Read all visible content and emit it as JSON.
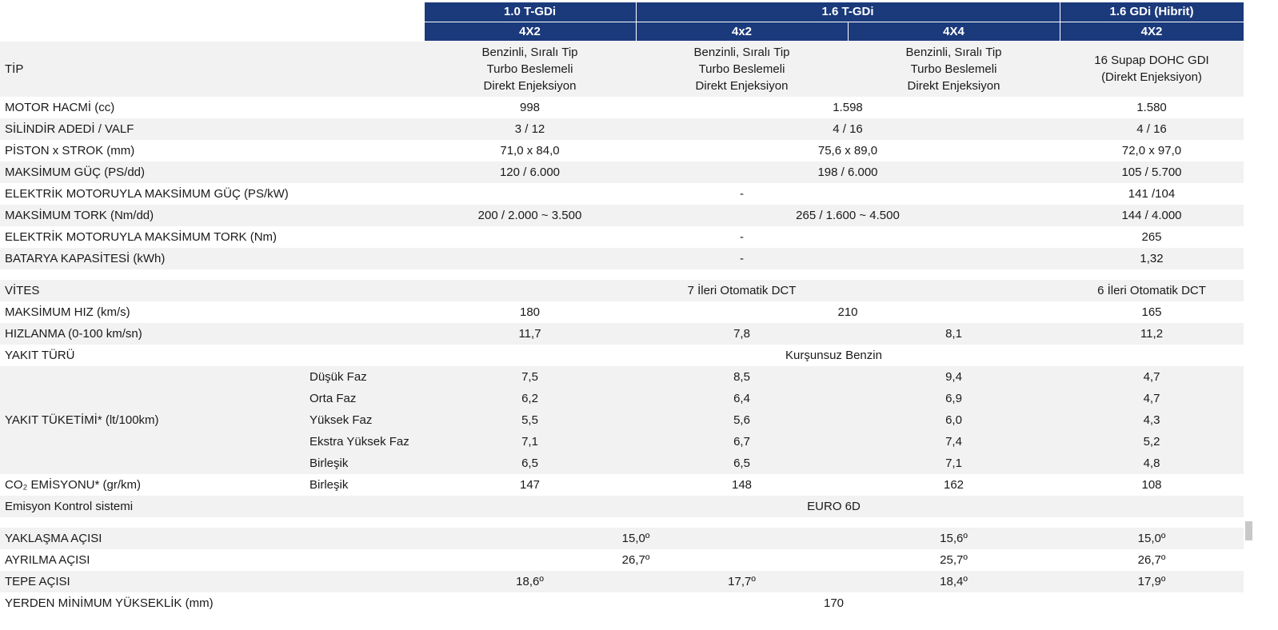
{
  "header": {
    "engines": [
      "1.0 T-GDi",
      "1.6 T-GDi",
      "1.6 GDi (Hibrit)"
    ],
    "drives": [
      "4X2",
      "4x2",
      "4X4",
      "4X2"
    ]
  },
  "engine_rows": [
    {
      "label": "TİP",
      "values": [
        "Benzinli, Sıralı Tip\nTurbo Beslemeli\nDirekt Enjeksiyon",
        "Benzinli, Sıralı Tip\nTurbo Beslemeli\nDirekt Enjeksiyon",
        "Benzinli, Sıralı Tip\nTurbo Beslemeli\nDirekt Enjeksiyon",
        "16 Supap DOHC GDI\n(Direkt Enjeksiyon)"
      ]
    },
    {
      "label": "MOTOR HACMİ (cc)",
      "values": [
        "998",
        "1.598",
        "1.580"
      ]
    },
    {
      "label": "SİLİNDİR ADEDİ / VALF",
      "values": [
        "3 / 12",
        "4 / 16",
        "4 / 16"
      ]
    },
    {
      "label": "PİSTON x STROK (mm)",
      "values": [
        "71,0 x 84,0",
        "75,6 x 89,0",
        "72,0 x 97,0"
      ]
    },
    {
      "label": "MAKSİMUM GÜÇ (PS/dd)",
      "values": [
        "120 / 6.000",
        "198 / 6.000",
        "105 / 5.700"
      ]
    },
    {
      "label": "ELEKTRİK MOTORUYLA MAKSİMUM GÜÇ (PS/kW)",
      "values": [
        "-",
        "141 /104"
      ]
    },
    {
      "label": "MAKSİMUM TORK (Nm/dd)",
      "values": [
        "200 / 2.000 ~ 3.500",
        "265 / 1.600 ~ 4.500",
        "144 / 4.000"
      ]
    },
    {
      "label": "ELEKTRİK MOTORUYLA MAKSİMUM TORK (Nm)",
      "values": [
        "-",
        "265"
      ]
    },
    {
      "label": "BATARYA KAPASİTESİ (kWh)",
      "values": [
        "-",
        "1,32"
      ]
    },
    {
      "label": "VİTES",
      "values": [
        "7 İleri Otomatik DCT",
        "6 İleri Otomatik DCT"
      ]
    },
    {
      "label": "MAKSİMUM HIZ (km/s)",
      "values": [
        "180",
        "210",
        "165"
      ]
    },
    {
      "label": "HIZLANMA (0-100 km/sn)",
      "values": [
        "11,7",
        "7,8",
        "8,1",
        "11,2"
      ]
    },
    {
      "label": "YAKIT TÜRÜ",
      "values": [
        "Kurşunsuz Benzin"
      ]
    }
  ],
  "fuel_consumption": {
    "label": "YAKIT TÜKETİMİ* (lt/100km)",
    "phases": [
      {
        "name": "Düşük Faz",
        "values": [
          "7,5",
          "8,5",
          "9,4",
          "4,7"
        ]
      },
      {
        "name": "Orta Faz",
        "values": [
          "6,2",
          "6,4",
          "6,9",
          "4,7"
        ]
      },
      {
        "name": "Yüksek Faz",
        "values": [
          "5,5",
          "5,6",
          "6,0",
          "4,3"
        ]
      },
      {
        "name": "Ekstra Yüksek Faz",
        "values": [
          "7,1",
          "6,7",
          "7,4",
          "5,2"
        ]
      },
      {
        "name": "Birleşik",
        "values": [
          "6,5",
          "6,5",
          "7,1",
          "4,8"
        ]
      }
    ]
  },
  "co2_emission": {
    "label": "CO₂ EMİSYONU* (gr/km)",
    "phase": "Birleşik",
    "values": [
      "147",
      "148",
      "162",
      "108"
    ]
  },
  "body_rows": [
    {
      "label": "Emisyon Kontrol sistemi",
      "values": [
        "EURO 6D"
      ]
    },
    {
      "label": "YAKLAŞMA AÇISI",
      "values": [
        "15,0º",
        "15,6º",
        "15,0º"
      ]
    },
    {
      "label": "AYRILMA AÇISI",
      "values": [
        "26,7º",
        "25,7º",
        "26,7º"
      ]
    },
    {
      "label": "TEPE AÇISI",
      "values": [
        "18,6º",
        "17,7º",
        "18,4º",
        "17,9º"
      ]
    },
    {
      "label": "YERDEN MİNİMUM YÜKSEKLİK (mm)",
      "values": [
        "170"
      ]
    }
  ]
}
